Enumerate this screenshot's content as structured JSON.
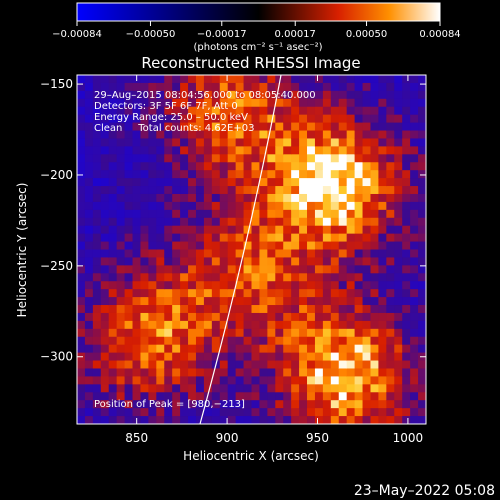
{
  "chart_data": {
    "type": "heatmap",
    "title": "Reconstructed RHESSI Image",
    "xlabel": "Heliocentric X (arcsec)",
    "ylabel": "Heliocentric Y (arcsec)",
    "xlim": [
      817,
      1010
    ],
    "ylim": [
      -337,
      -145
    ],
    "x_ticks": [
      850,
      900,
      950,
      1000
    ],
    "y_ticks": [
      -150,
      -200,
      -250,
      -300
    ],
    "x_tick_labels": [
      "850",
      "900",
      "950",
      "1000"
    ],
    "y_tick_labels": [
      "−150",
      "−200",
      "−250",
      "−300"
    ],
    "colorbar": {
      "range": [
        -0.00084,
        0.00084
      ],
      "ticks": [
        -0.00084,
        -0.0005,
        -0.00017,
        0.00017,
        0.0005,
        0.00084
      ],
      "tick_labels": [
        "−0.00084",
        "−0.00050",
        "−0.00017",
        "0.00017",
        "0.00050",
        "0.00084"
      ],
      "unit_label": "(photons cm⁻² s⁻¹ asec⁻²)"
    },
    "annotations": {
      "time_range": "29–Aug–2015 08:04:56.000 to 08:05:40.000",
      "detectors": "Detectors: 3F 5F 6F 7F, Att 0",
      "energy_range": "Energy Range: 25.0 – 50.0 keV",
      "method_counts": "Clean     Total counts: 4.62E+03",
      "peak": "Position of Peak = [980,−213]"
    },
    "sources": [
      {
        "x": 960,
        "y": -205,
        "intensity": 1.0
      },
      {
        "x": 965,
        "y": -310,
        "intensity": 0.95
      },
      {
        "x": 900,
        "y": -165,
        "intensity": 0.7
      },
      {
        "x": 855,
        "y": -290,
        "intensity": 0.75
      },
      {
        "x": 910,
        "y": -255,
        "intensity": 0.6
      }
    ]
  },
  "footer_date": "23–May–2022 05:08"
}
